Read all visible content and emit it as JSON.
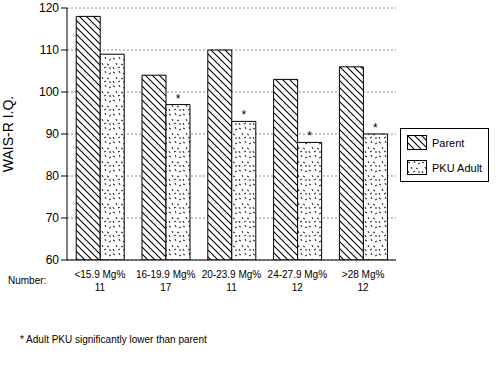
{
  "chart_data": {
    "type": "bar",
    "y_label": "WAIS-R I.Q.",
    "categories": [
      "<15.9 Mg%",
      "16-19.9 Mg%",
      "20-23.9 Mg%",
      "24-27.9 Mg%",
      ">28 Mg%"
    ],
    "counts_label": "Number:",
    "counts": [
      11,
      17,
      11,
      12,
      12
    ],
    "series": [
      {
        "name": "Parent",
        "color": "#000000",
        "values": [
          118,
          104,
          110,
          103,
          106
        ]
      },
      {
        "name": "PKU Adult",
        "color": "#000000",
        "values": [
          109,
          97,
          93,
          88,
          90
        ]
      }
    ],
    "ylim": [
      60,
      120
    ],
    "yticks": [
      60,
      70,
      80,
      90,
      100,
      110,
      120
    ],
    "grid": true,
    "legend": "right",
    "annotations": [
      {
        "text": "*",
        "series": "PKU Adult",
        "category": "16-19.9 Mg%"
      },
      {
        "text": "*",
        "series": "PKU Adult",
        "category": "20-23.9 Mg%"
      },
      {
        "text": "*",
        "series": "PKU Adult",
        "category": "24-27.9 Mg%"
      },
      {
        "text": "*",
        "series": "PKU Adult",
        "category": ">28 Mg%"
      }
    ],
    "footnote": "* Adult PKU significantly lower than parent"
  }
}
